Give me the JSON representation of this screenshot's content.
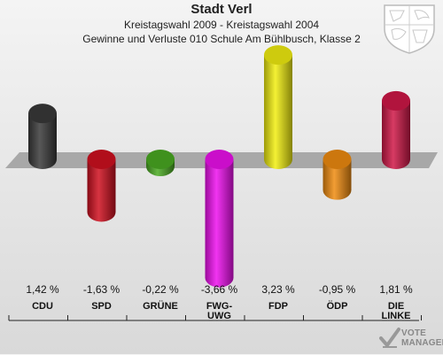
{
  "header": {
    "title": "Stadt Verl",
    "subtitle1": "Kreistagswahl 2009 - Kreistagswahl 2004",
    "subtitle2": "Gewinne und Verluste 010 Schule Am Bühlbusch, Klasse 2"
  },
  "branding": {
    "line1": "VOTE",
    "line2": "MANAGER"
  },
  "chart_data": {
    "type": "bar",
    "title": "Stadt Verl",
    "ylim": [
      -3.66,
      3.23
    ],
    "grid": false,
    "legend": "none",
    "categories": [
      "CDU",
      "SPD",
      "GRÜNE",
      "FWG-\nUWG",
      "FDP",
      "ÖDP",
      "DIE\nLINKE"
    ],
    "series": [
      {
        "values": [
          1.42,
          -1.63,
          -0.22,
          -3.66,
          3.23,
          -0.95,
          1.81
        ],
        "value_labels": [
          "1,42 %",
          "-1,63 %",
          "-0,22 %",
          "-3,66 %",
          "3,23 %",
          "-0,95 %",
          "1,81 %"
        ],
        "colors": [
          "#3a3a3a",
          "#d01020",
          "#4aaa22",
          "#ee10ee",
          "#f2ef10",
          "#f08c10",
          "#d01848"
        ]
      }
    ]
  }
}
